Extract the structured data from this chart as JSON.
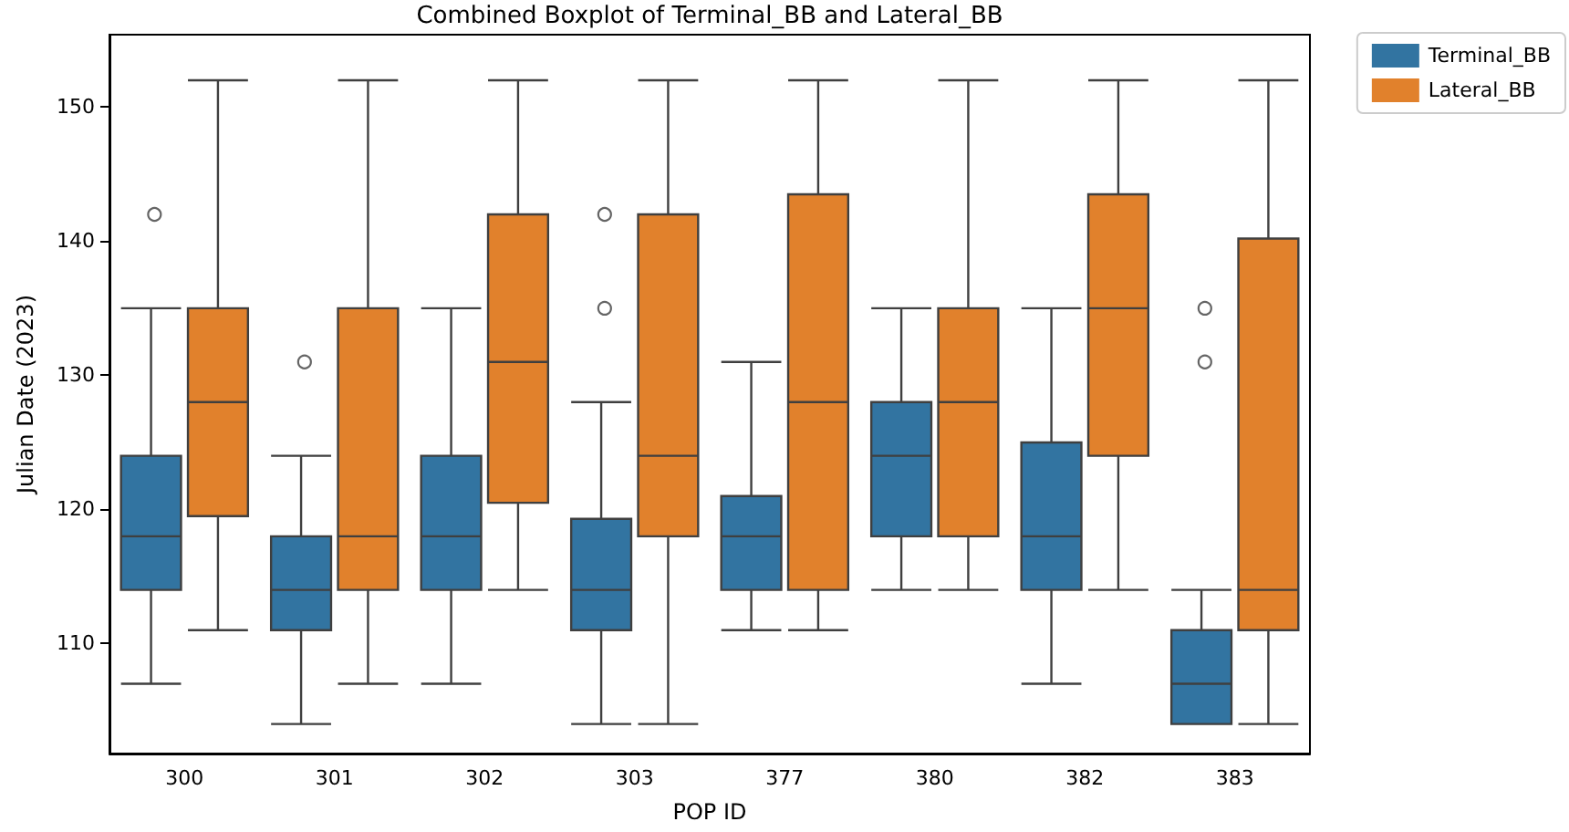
{
  "chart_data": {
    "type": "box",
    "title": "Combined Boxplot of Terminal_BB and Lateral_BB",
    "xlabel": "POP ID",
    "ylabel": "Julian Date (2023)",
    "categories": [
      "300",
      "301",
      "302",
      "303",
      "377",
      "380",
      "382",
      "383"
    ],
    "ylim": [
      101.8,
      155.4
    ],
    "yticks": [
      110,
      120,
      130,
      140,
      150
    ],
    "grid": false,
    "legend": "top right",
    "marker": "circle",
    "series": [
      {
        "name": "Terminal_BB",
        "color": "#3274a1",
        "boxes": [
          {
            "low": 107,
            "q1": 114,
            "median": 118,
            "q3": 124,
            "high": 135,
            "outliers": [
              142
            ]
          },
          {
            "low": 104,
            "q1": 111,
            "median": 114,
            "q3": 118,
            "high": 124,
            "outliers": [
              131
            ]
          },
          {
            "low": 107,
            "q1": 114,
            "median": 118,
            "q3": 124,
            "high": 135
          },
          {
            "low": 104,
            "q1": 111,
            "median": 114,
            "q3": 119.3,
            "high": 128,
            "outliers": [
              135,
              142
            ]
          },
          {
            "low": 111,
            "q1": 114,
            "median": 118,
            "q3": 121,
            "high": 131
          },
          {
            "low": 114,
            "q1": 118,
            "median": 124,
            "q3": 128,
            "high": 135
          },
          {
            "low": 107,
            "q1": 114,
            "median": 118,
            "q3": 125,
            "high": 135
          },
          {
            "low": 104,
            "q1": 104,
            "median": 107,
            "q3": 111,
            "high": 114,
            "outliers": [
              131,
              135
            ]
          }
        ]
      },
      {
        "name": "Lateral_BB",
        "color": "#e1812c",
        "boxes": [
          {
            "low": 111,
            "q1": 119.5,
            "median": 128,
            "q3": 135,
            "high": 152
          },
          {
            "low": 107,
            "q1": 114,
            "median": 118,
            "q3": 135,
            "high": 152
          },
          {
            "low": 114,
            "q1": 120.5,
            "median": 131,
            "q3": 142,
            "high": 152
          },
          {
            "low": 104,
            "q1": 118,
            "median": 124,
            "q3": 142,
            "high": 152
          },
          {
            "low": 111,
            "q1": 114,
            "median": 128,
            "q3": 143.5,
            "high": 152
          },
          {
            "low": 114,
            "q1": 118,
            "median": 128,
            "q3": 135,
            "high": 152
          },
          {
            "low": 114,
            "q1": 124,
            "median": 135,
            "q3": 143.5,
            "high": 152
          },
          {
            "low": 104,
            "q1": 111,
            "median": 114,
            "q3": 140.2,
            "high": 152
          }
        ]
      }
    ]
  }
}
